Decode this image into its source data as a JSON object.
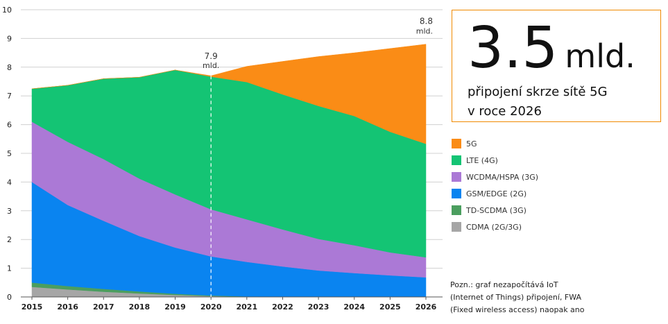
{
  "chart_data": {
    "type": "area",
    "stacked": true,
    "x": [
      2015,
      2016,
      2017,
      2018,
      2019,
      2020,
      2021,
      2022,
      2023,
      2024,
      2025,
      2026
    ],
    "ylim": [
      0,
      10
    ],
    "yticks": [
      0,
      1,
      2,
      3,
      4,
      5,
      6,
      7,
      8,
      9,
      10
    ],
    "grid": true,
    "series": [
      {
        "name": "CDMA (2G/3G)",
        "color": "#a6a6a6",
        "values": [
          0.35,
          0.26,
          0.18,
          0.12,
          0.07,
          0.03,
          0.01,
          0,
          0,
          0,
          0,
          0
        ]
      },
      {
        "name": "TD-SCDMA (3G)",
        "color": "#4b9e5f",
        "values": [
          0.15,
          0.12,
          0.1,
          0.07,
          0.04,
          0.02,
          0.01,
          0,
          0,
          0,
          0,
          0
        ]
      },
      {
        "name": "GSM/EDGE (2G)",
        "color": "#0a84f0",
        "values": [
          3.5,
          2.82,
          2.37,
          1.93,
          1.61,
          1.36,
          1.2,
          1.06,
          0.92,
          0.83,
          0.75,
          0.68
        ]
      },
      {
        "name": "WCDMA/HSPA (3G)",
        "color": "#ab79d6",
        "values": [
          2.1,
          2.2,
          2.15,
          2.0,
          1.85,
          1.64,
          1.48,
          1.29,
          1.1,
          0.97,
          0.8,
          0.7
        ]
      },
      {
        "name": "LTE (4G)",
        "color": "#14c474",
        "values": [
          1.15,
          1.97,
          2.8,
          3.53,
          4.33,
          4.62,
          4.78,
          4.7,
          4.63,
          4.5,
          4.2,
          3.95
        ]
      },
      {
        "name": "5G",
        "color": "#fa8c16",
        "values": [
          0,
          0,
          0,
          0,
          0,
          0.03,
          0.55,
          1.15,
          1.72,
          2.2,
          2.9,
          3.47
        ]
      }
    ],
    "marker": {
      "x": 2020,
      "value_label": "7.9",
      "unit_label": "mld."
    },
    "end_annotation": {
      "x": 2026,
      "value_label": "8.8",
      "unit_label": "mld."
    }
  },
  "highlight": {
    "number": "3.5",
    "unit": "mld.",
    "line1": "připojení skrze sítě 5G",
    "line2": "v roce 2026"
  },
  "legend": [
    {
      "label": "5G",
      "color": "#fa8c16"
    },
    {
      "label": "LTE (4G)",
      "color": "#14c474"
    },
    {
      "label": "WCDMA/HSPA (3G)",
      "color": "#ab79d6"
    },
    {
      "label": "GSM/EDGE (2G)",
      "color": "#0a84f0"
    },
    {
      "label": "TD-SCDMA (3G)",
      "color": "#4b9e5f"
    },
    {
      "label": "CDMA (2G/3G)",
      "color": "#a6a6a6"
    }
  ],
  "note": "Pozn.: graf nezapočítává IoT\n(Internet of Things) připojení, FWA\n(Fixed wireless access) naopak ano"
}
